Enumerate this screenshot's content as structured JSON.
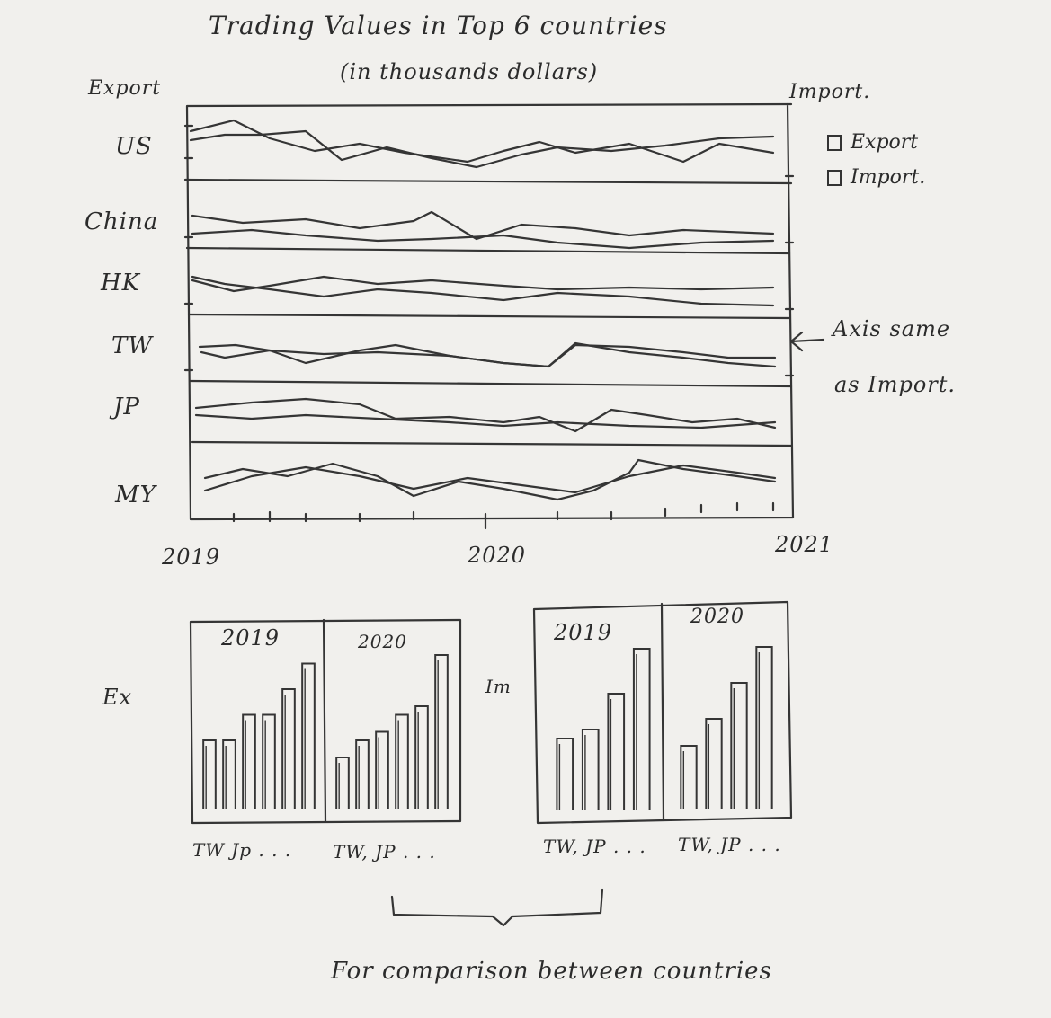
{
  "title": "Trading Values in Top 6 countries",
  "subtitle": "(in thousands dollars)",
  "left_axis_label": "Export",
  "right_axis_label": "Import.",
  "legend": [
    {
      "label": "Export"
    },
    {
      "label": "Import."
    }
  ],
  "countries": [
    "US",
    "China",
    "HK",
    "TW",
    "JP",
    "MY"
  ],
  "x_ticks": [
    "2019",
    "2020",
    "2021"
  ],
  "annotation": {
    "line1": "Axis same",
    "line2": "as Import."
  },
  "bar_panels": {
    "export_label": "Ex",
    "import_label": "Im",
    "years": [
      "2019",
      "2020"
    ],
    "category_labels": [
      "TW Jp . . .",
      "TW, JP . . .",
      "TW, JP . . .",
      "TW, JP . . ."
    ]
  },
  "caption": "For comparison between countries",
  "chart_data": [
    {
      "type": "line",
      "title": "Trading Values in Top 6 countries",
      "subtitle": "(in thousands dollars)",
      "ylabel": "Export",
      "ylabel_right": "Import.",
      "x": [
        "2019",
        "2020",
        "2021"
      ],
      "panels": [
        "US",
        "China",
        "HK",
        "TW",
        "JP",
        "MY"
      ],
      "legend": [
        "Export",
        "Import."
      ]
    },
    {
      "type": "bar",
      "title": "Ex",
      "facets": [
        "2019",
        "2020"
      ],
      "xlabel": "TW Jp . . .",
      "series": [
        {
          "facet": "2019",
          "values": [
            0.4,
            0.4,
            0.55,
            0.55,
            0.7,
            0.85
          ]
        },
        {
          "facet": "2020",
          "values": [
            0.3,
            0.4,
            0.45,
            0.55,
            0.6,
            0.9
          ]
        }
      ]
    },
    {
      "type": "bar",
      "title": "Im",
      "facets": [
        "2019",
        "2020"
      ],
      "xlabel": "TW, JP . . .",
      "series": [
        {
          "facet": "2019",
          "values": [
            0.4,
            0.45,
            0.65,
            0.9
          ]
        },
        {
          "facet": "2020",
          "values": [
            0.35,
            0.5,
            0.7,
            0.9
          ]
        }
      ]
    }
  ]
}
